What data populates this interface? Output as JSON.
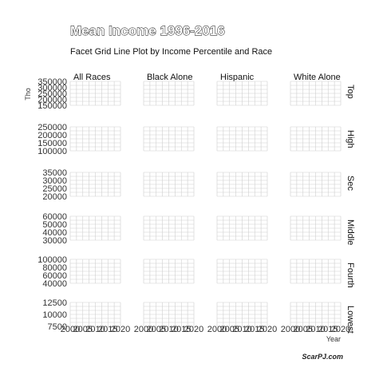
{
  "chart_data": {
    "type": "line",
    "title": "Mean Income 1996-2016",
    "subtitle": "Facet Grid Line Plot by Income Percentile and Race",
    "xlabel": "Year",
    "ylabel": "Tho",
    "caption": "ScarPJ.com",
    "columns": [
      "All Races",
      "Black Alone",
      "Hispanic",
      "White Alone"
    ],
    "rows": [
      {
        "label": "Top",
        "ylim": [
          150000,
          350000
        ],
        "ticks": [
          "350000",
          "300000",
          "250000",
          "200000",
          "150000"
        ]
      },
      {
        "label": "High",
        "ylim": [
          100000,
          250000
        ],
        "ticks": [
          "250000",
          "200000",
          "150000",
          "100000"
        ]
      },
      {
        "label": "Sec",
        "ylim": [
          20000,
          35000
        ],
        "ticks": [
          "35000",
          "30000",
          "25000",
          "20000"
        ]
      },
      {
        "label": "Middle",
        "ylim": [
          30000,
          60000
        ],
        "ticks": [
          "60000",
          "50000",
          "40000",
          "30000"
        ]
      },
      {
        "label": "Fourth",
        "ylim": [
          40000,
          100000
        ],
        "ticks": [
          "100000",
          "80000",
          "60000",
          "40000"
        ]
      },
      {
        "label": "Lowest",
        "ylim": [
          7500,
          12500
        ],
        "ticks": [
          "12500",
          "10000",
          "7500"
        ]
      }
    ],
    "xlim": [
      2000,
      2020
    ],
    "xticks": [
      "2000",
      "2005",
      "2010",
      "2015",
      "2020"
    ],
    "grid": true,
    "series": []
  }
}
